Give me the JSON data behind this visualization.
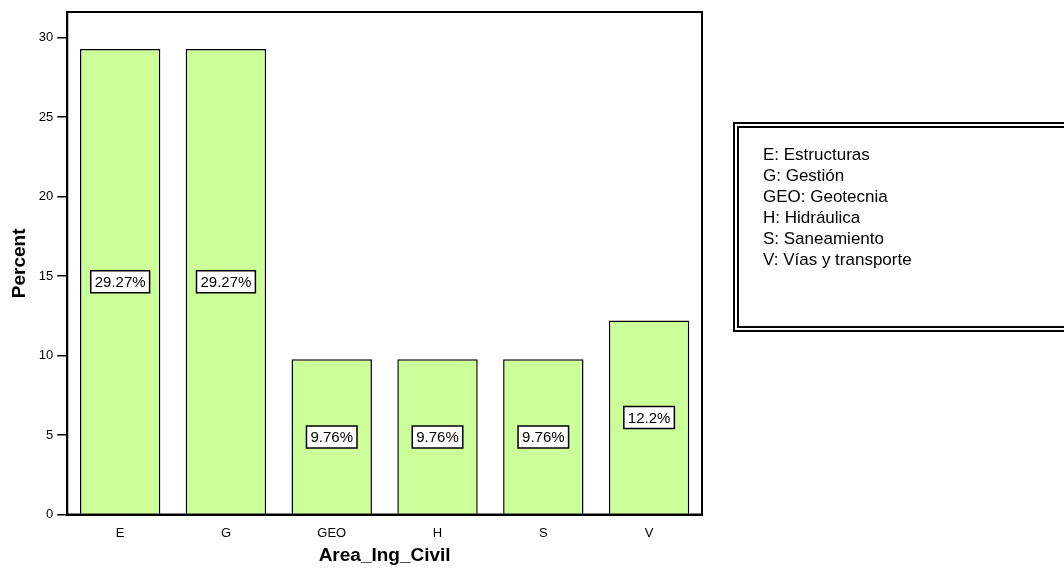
{
  "chart_data": {
    "type": "bar",
    "xlabel": "Area_Ing_Civil",
    "ylabel": "Percent",
    "categories": [
      "E",
      "G",
      "GEO",
      "H",
      "S",
      "V"
    ],
    "values": [
      29.27,
      29.27,
      9.76,
      9.76,
      9.76,
      12.2
    ],
    "value_labels": [
      "29.27%",
      "29.27%",
      "9.76%",
      "9.76%",
      "9.76%",
      "12.2%"
    ],
    "color": "#ccff99",
    "ylim": [
      0,
      31.6
    ],
    "yticks": [
      0,
      5,
      10,
      15,
      20,
      25,
      30
    ],
    "grid": false,
    "legend": false,
    "annotations": [
      "E: Estructuras\nG: Gestión\nGEO: Geotecnia\nH: Hidráulica\nS: Saneamiento\nV: Vías y transporte"
    ]
  }
}
